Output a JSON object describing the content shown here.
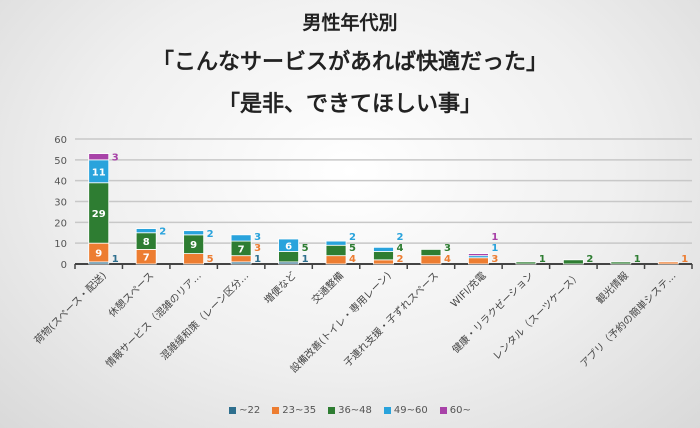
{
  "chart_data": {
    "type": "bar",
    "stacked": true,
    "title": [
      "男性年代別",
      "「こんなサービスがあれば快適だった」",
      "「是非、できてほしい事」"
    ],
    "xlabel": "",
    "ylabel": "",
    "ylim": [
      0,
      60
    ],
    "yticks": [
      "0",
      "10",
      "20",
      "30",
      "40",
      "50",
      "60"
    ],
    "grid": true,
    "legend_position": "bottom",
    "categories": [
      "荷物(スペース・配送)",
      "休憩スペース",
      "情報サービス（混雑のリア…",
      "混雑緩和策（レーン区分…",
      "増便など",
      "交通整備",
      "設備改善(トイレ・専用レーン)",
      "子連れ支援・子ずれスペース",
      "WIFI/充電",
      "健康・リラクゼーション",
      "レンタル（スーツケース）",
      "観光情報",
      "アプリ（予約の簡単システ…"
    ],
    "series": [
      {
        "name": "~22",
        "color": "#2e6f8e",
        "values": [
          1,
          0,
          0,
          1,
          1,
          0,
          0,
          0,
          0,
          0,
          0,
          0,
          0
        ]
      },
      {
        "name": "23~35",
        "color": "#ed7d31",
        "values": [
          9,
          7,
          5,
          3,
          0,
          4,
          2,
          4,
          3,
          0,
          0,
          0,
          1
        ]
      },
      {
        "name": "36~48",
        "color": "#2e7d32",
        "values": [
          29,
          8,
          9,
          7,
          5,
          5,
          4,
          3,
          0,
          1,
          2,
          1,
          0
        ]
      },
      {
        "name": "49~60",
        "color": "#29a3dc",
        "values": [
          11,
          2,
          2,
          3,
          6,
          2,
          2,
          0,
          1,
          0,
          0,
          0,
          0
        ]
      },
      {
        "name": "60~",
        "color": "#a842a8",
        "values": [
          3,
          0,
          0,
          0,
          0,
          0,
          0,
          0,
          1,
          0,
          0,
          0,
          0
        ]
      }
    ]
  }
}
